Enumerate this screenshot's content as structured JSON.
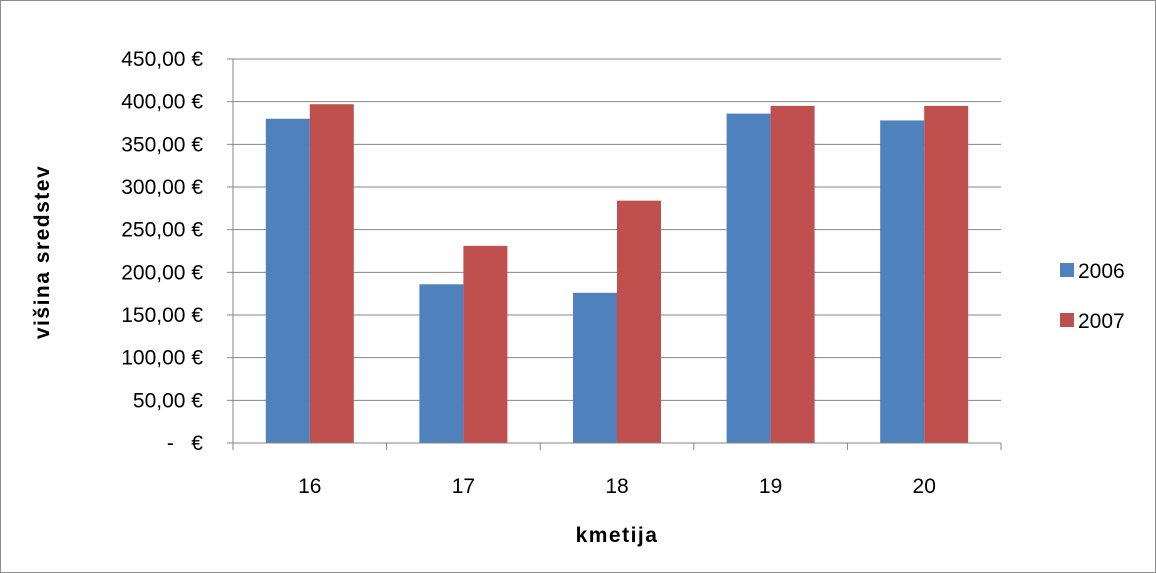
{
  "chart_data": {
    "type": "bar",
    "title": "",
    "xlabel": "kmetija",
    "ylabel": "višina sredstev",
    "categories": [
      "16",
      "17",
      "18",
      "19",
      "20"
    ],
    "series": [
      {
        "name": "2006",
        "color": "#4f81bd",
        "values": [
          380,
          186,
          176,
          386,
          378
        ]
      },
      {
        "name": "2007",
        "color": "#c0504d",
        "values": [
          397,
          231,
          284,
          395,
          395
        ]
      }
    ],
    "ylim": [
      0,
      450
    ],
    "y_ticks": [
      {
        "value": 0,
        "label": "-   €"
      },
      {
        "value": 50,
        "label": "50,00 €"
      },
      {
        "value": 100,
        "label": "100,00 €"
      },
      {
        "value": 150,
        "label": "150,00 €"
      },
      {
        "value": 200,
        "label": "200,00 €"
      },
      {
        "value": 250,
        "label": "250,00 €"
      },
      {
        "value": 300,
        "label": "300,00 €"
      },
      {
        "value": 350,
        "label": "350,00 €"
      },
      {
        "value": 400,
        "label": "400,00 €"
      },
      {
        "value": 450,
        "label": "450,00 €"
      }
    ],
    "grid": true,
    "legend_position": "right"
  }
}
